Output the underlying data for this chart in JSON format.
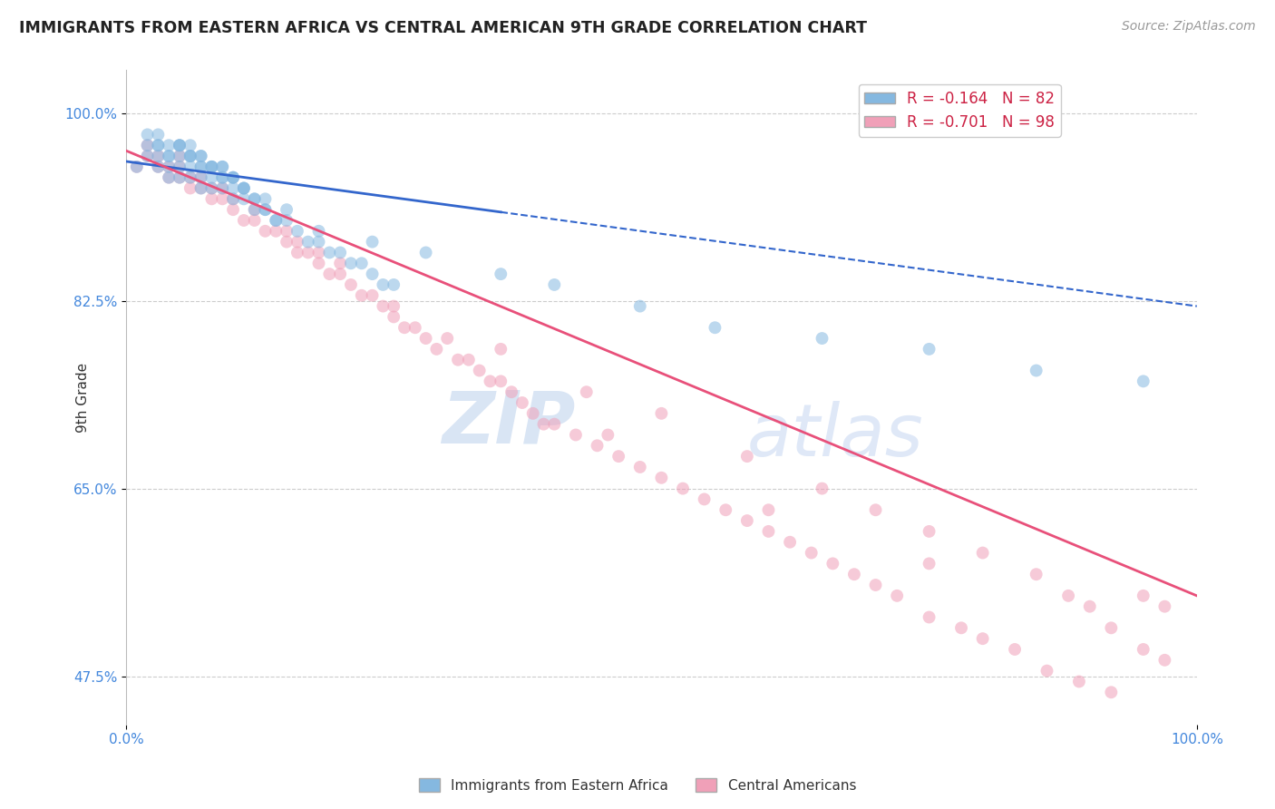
{
  "title": "IMMIGRANTS FROM EASTERN AFRICA VS CENTRAL AMERICAN 9TH GRADE CORRELATION CHART",
  "source": "Source: ZipAtlas.com",
  "ylabel": "9th Grade",
  "xlim": [
    0.0,
    100.0
  ],
  "ylim": [
    43.0,
    104.0
  ],
  "yticks": [
    47.5,
    65.0,
    82.5,
    100.0
  ],
  "xticks": [
    0.0,
    100.0
  ],
  "blue_R": -0.164,
  "blue_N": 82,
  "pink_R": -0.701,
  "pink_N": 98,
  "blue_color": "#85b8e0",
  "pink_color": "#f0a0b8",
  "blue_line_color": "#3366cc",
  "pink_line_color": "#e8507a",
  "background_color": "#ffffff",
  "grid_color": "#cccccc",
  "watermark_zip": "ZIP",
  "watermark_atlas": "atlas",
  "blue_scatter_x": [
    1,
    2,
    2,
    3,
    3,
    3,
    4,
    4,
    4,
    5,
    5,
    5,
    5,
    6,
    6,
    6,
    6,
    7,
    7,
    7,
    7,
    8,
    8,
    8,
    9,
    9,
    9,
    10,
    10,
    10,
    11,
    11,
    12,
    12,
    13,
    13,
    14,
    15,
    15,
    16,
    17,
    18,
    18,
    19,
    20,
    21,
    22,
    23,
    24,
    25,
    3,
    4,
    5,
    6,
    7,
    8,
    9,
    10,
    11,
    12,
    13,
    14,
    2,
    3,
    4,
    5,
    6,
    7,
    8,
    9,
    10,
    11,
    23,
    28,
    35,
    40,
    48,
    55,
    65,
    75,
    85,
    95
  ],
  "blue_scatter_y": [
    95,
    96,
    97,
    95,
    96,
    97,
    94,
    95,
    96,
    94,
    95,
    96,
    97,
    94,
    95,
    96,
    97,
    93,
    94,
    95,
    96,
    93,
    94,
    95,
    93,
    94,
    95,
    92,
    93,
    94,
    92,
    93,
    91,
    92,
    91,
    92,
    90,
    90,
    91,
    89,
    88,
    88,
    89,
    87,
    87,
    86,
    86,
    85,
    84,
    84,
    97,
    96,
    97,
    96,
    95,
    95,
    94,
    94,
    93,
    92,
    91,
    90,
    98,
    98,
    97,
    97,
    96,
    96,
    95,
    95,
    94,
    93,
    88,
    87,
    85,
    84,
    82,
    80,
    79,
    78,
    76,
    75
  ],
  "pink_scatter_x": [
    1,
    2,
    2,
    3,
    3,
    4,
    4,
    5,
    5,
    5,
    6,
    6,
    7,
    7,
    8,
    8,
    9,
    9,
    10,
    10,
    11,
    12,
    12,
    13,
    14,
    15,
    15,
    16,
    16,
    17,
    18,
    18,
    19,
    20,
    20,
    21,
    22,
    23,
    24,
    25,
    25,
    26,
    27,
    28,
    29,
    30,
    31,
    32,
    33,
    34,
    35,
    36,
    37,
    38,
    39,
    40,
    42,
    44,
    46,
    48,
    50,
    52,
    54,
    56,
    58,
    60,
    62,
    64,
    66,
    68,
    70,
    72,
    75,
    78,
    80,
    83,
    86,
    89,
    92,
    95,
    97,
    35,
    43,
    50,
    58,
    65,
    70,
    75,
    80,
    85,
    88,
    90,
    92,
    95,
    97,
    45,
    60,
    75
  ],
  "pink_scatter_y": [
    95,
    96,
    97,
    95,
    96,
    94,
    95,
    94,
    95,
    96,
    93,
    94,
    93,
    94,
    92,
    93,
    92,
    93,
    91,
    92,
    90,
    91,
    90,
    89,
    89,
    88,
    89,
    87,
    88,
    87,
    86,
    87,
    85,
    85,
    86,
    84,
    83,
    83,
    82,
    81,
    82,
    80,
    80,
    79,
    78,
    79,
    77,
    77,
    76,
    75,
    75,
    74,
    73,
    72,
    71,
    71,
    70,
    69,
    68,
    67,
    66,
    65,
    64,
    63,
    62,
    61,
    60,
    59,
    58,
    57,
    56,
    55,
    53,
    52,
    51,
    50,
    48,
    47,
    46,
    55,
    54,
    78,
    74,
    72,
    68,
    65,
    63,
    61,
    59,
    57,
    55,
    54,
    52,
    50,
    49,
    70,
    63,
    58
  ]
}
